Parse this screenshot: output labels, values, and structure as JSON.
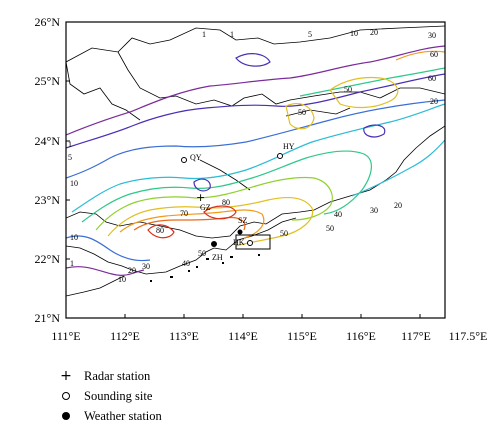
{
  "map": {
    "lat_ticks": [
      "26°N",
      "25°N",
      "24°N",
      "23°N",
      "22°N",
      "21°N"
    ],
    "lon_ticks": [
      "111°E",
      "112°E",
      "113°E",
      "114°E",
      "115°E",
      "116°E",
      "117°E",
      "117.5°E"
    ],
    "contour_colors": {
      "1": "#7b2b9c",
      "5": "#4a2fb4",
      "10": "#3b6fd6",
      "20": "#2bbcd6",
      "30": "#2ec98a",
      "40": "#8fd12c",
      "50": "#e0c021",
      "60": "#f09a1c",
      "70": "#e86a1c",
      "80": "#d8321e"
    },
    "sites": {
      "radar": {
        "label": "GZ"
      },
      "sounding": [
        {
          "label": "QY"
        },
        {
          "label": "HY"
        },
        {
          "label": "HK"
        }
      ],
      "weather": [
        {
          "label": "SZ"
        },
        {
          "label": "ZH"
        }
      ]
    },
    "contour_labels": [
      "1",
      "1",
      "5",
      "10",
      "20",
      "30",
      "60",
      "60",
      "20",
      "50",
      "50",
      "1",
      "5",
      "10",
      "70",
      "80",
      "80",
      "10",
      "1",
      "10",
      "20",
      "30",
      "40",
      "50",
      "50",
      "40",
      "30",
      "20",
      "50"
    ]
  },
  "legend": {
    "radar": "Radar station",
    "sounding": "Sounding site",
    "weather": "Weather station"
  }
}
